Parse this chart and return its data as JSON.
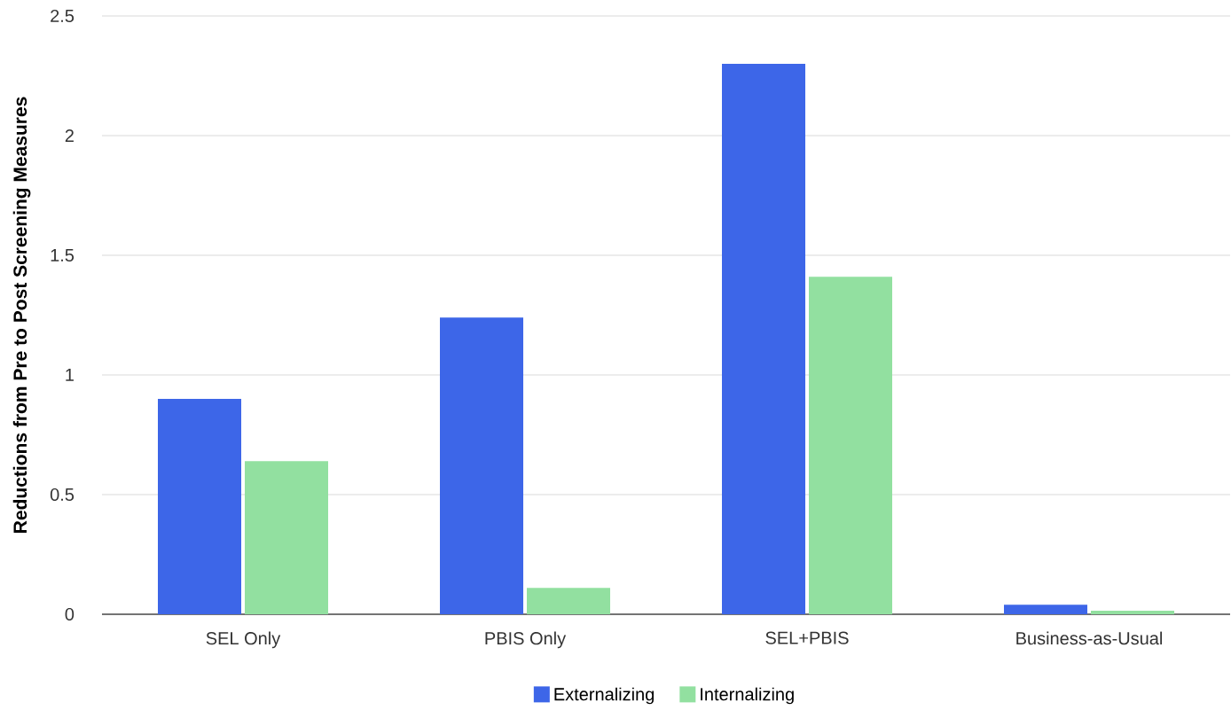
{
  "chart_data": {
    "type": "bar",
    "ylabel": "Reductions from Pre to Post Screening Measures",
    "categories": [
      "SEL Only",
      "PBIS Only",
      "SEL+PBIS",
      "Business-as-Usual"
    ],
    "series": [
      {
        "name": "Externalizing",
        "color": "#3d66e8",
        "values": [
          0.9,
          1.24,
          2.3,
          0.04
        ]
      },
      {
        "name": "Internalizing",
        "color": "#92e0a0",
        "values": [
          0.64,
          0.11,
          1.41,
          0.015
        ]
      }
    ],
    "ylim": [
      0,
      2.5
    ],
    "yticks": [
      0,
      0.5,
      1,
      1.5,
      2,
      2.5
    ],
    "grid": "y",
    "legend": "bottom"
  }
}
